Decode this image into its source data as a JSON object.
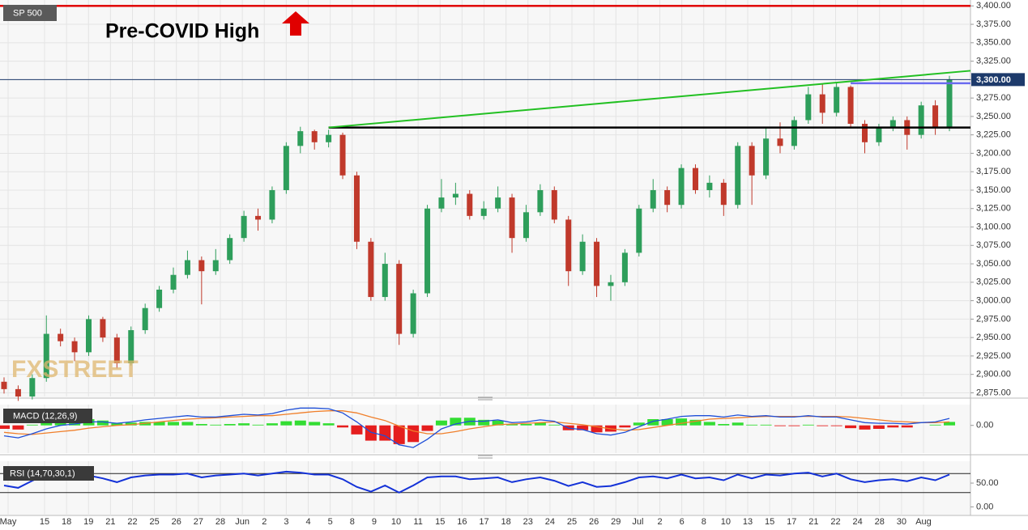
{
  "chart_data": [
    {
      "type": "candlestick",
      "title": "SP 500",
      "annotation": "Pre-COVID High",
      "watermark": "FXSTREET",
      "open": [
        2890,
        2880,
        2870,
        2895,
        2955,
        2945,
        2930,
        2975,
        2950,
        2915,
        2960,
        2990,
        3015,
        3035,
        3055,
        3040,
        3055,
        3085,
        3115,
        3110,
        3150,
        3210,
        3230,
        3215,
        3225,
        3170,
        3080,
        3005,
        3050,
        2955,
        3010,
        3125,
        3140,
        3145,
        3115,
        3125,
        3140,
        3085,
        3120,
        3150,
        3110,
        3040,
        3080,
        3020,
        3025,
        3065,
        3125,
        3150,
        3130,
        3180,
        3150,
        3160,
        3130,
        3210,
        3170,
        3220,
        3210,
        3245,
        3280,
        3255,
        3290,
        3240,
        3215,
        3235,
        3245,
        3225,
        3265,
        3235
      ],
      "high": [
        2896,
        2885,
        2900,
        2980,
        2962,
        2950,
        2980,
        2978,
        2955,
        2965,
        2996,
        3020,
        3045,
        3068,
        3060,
        3070,
        3090,
        3122,
        3125,
        3155,
        3215,
        3236,
        3232,
        3232,
        3228,
        3175,
        3085,
        3065,
        3055,
        3015,
        3130,
        3165,
        3160,
        3150,
        3135,
        3155,
        3145,
        3130,
        3158,
        3155,
        3115,
        3090,
        3085,
        3035,
        3070,
        3130,
        3165,
        3155,
        3185,
        3185,
        3170,
        3165,
        3215,
        3215,
        3235,
        3242,
        3250,
        3290,
        3295,
        3295,
        3292,
        3245,
        3240,
        3250,
        3250,
        3270,
        3272,
        3305
      ],
      "low": [
        2874,
        2864,
        2866,
        2890,
        2938,
        2918,
        2925,
        2944,
        2908,
        2912,
        2955,
        2985,
        3010,
        3030,
        2995,
        3035,
        3050,
        3080,
        3095,
        3105,
        3145,
        3200,
        3205,
        3208,
        3165,
        3070,
        3000,
        3000,
        2940,
        2950,
        3005,
        3120,
        3130,
        3110,
        3110,
        3120,
        3065,
        3080,
        3115,
        3105,
        3020,
        3035,
        3005,
        3000,
        3020,
        3060,
        3120,
        3120,
        3125,
        3145,
        3140,
        3115,
        3125,
        3130,
        3165,
        3200,
        3205,
        3240,
        3240,
        3250,
        3235,
        3200,
        3210,
        3230,
        3205,
        3220,
        3225,
        3230
      ],
      "close": [
        2880,
        2870,
        2895,
        2955,
        2945,
        2930,
        2975,
        2950,
        2915,
        2960,
        2990,
        3015,
        3035,
        3055,
        3040,
        3055,
        3085,
        3115,
        3110,
        3150,
        3210,
        3230,
        3215,
        3225,
        3170,
        3080,
        3005,
        3050,
        2955,
        3010,
        3125,
        3140,
        3145,
        3115,
        3125,
        3140,
        3085,
        3120,
        3150,
        3110,
        3040,
        3080,
        3020,
        3025,
        3065,
        3125,
        3150,
        3130,
        3180,
        3150,
        3160,
        3130,
        3210,
        3170,
        3220,
        3210,
        3245,
        3280,
        3255,
        3290,
        3240,
        3215,
        3235,
        3245,
        3225,
        3265,
        3235,
        3300
      ],
      "up_color": "#2e9e5b",
      "down_color": "#c0392b",
      "ylim": [
        2870,
        3408
      ],
      "yticks": [
        {
          "value": 2875,
          "label": "2,875.00"
        },
        {
          "value": 2900,
          "label": "2,900.00"
        },
        {
          "value": 2925,
          "label": "2,925.00"
        },
        {
          "value": 2950,
          "label": "2,950.00"
        },
        {
          "value": 2975,
          "label": "2,975.00"
        },
        {
          "value": 3000,
          "label": "3,000.00"
        },
        {
          "value": 3025,
          "label": "3,025.00"
        },
        {
          "value": 3050,
          "label": "3,050.00"
        },
        {
          "value": 3075,
          "label": "3,075.00"
        },
        {
          "value": 3100,
          "label": "3,100.00"
        },
        {
          "value": 3125,
          "label": "3,125.00"
        },
        {
          "value": 3150,
          "label": "3,150.00"
        },
        {
          "value": 3175,
          "label": "3,175.00"
        },
        {
          "value": 3200,
          "label": "3,200.00"
        },
        {
          "value": 3225,
          "label": "3,225.00"
        },
        {
          "value": 3250,
          "label": "3,250.00"
        },
        {
          "value": 3275,
          "label": "3,275.00"
        },
        {
          "value": 3300,
          "label": "3,300.00"
        },
        {
          "value": 3325,
          "label": "3,325.00"
        },
        {
          "value": 3350,
          "label": "3,350.00"
        },
        {
          "value": 3375,
          "label": "3,375.00"
        },
        {
          "value": 3400,
          "label": "3,400.00"
        }
      ],
      "grid": true,
      "levels": [
        {
          "value": 3400,
          "color": "#e00000"
        },
        {
          "value": 3300,
          "color": "#1d3a6b"
        },
        {
          "value": 3235,
          "color": "#000000"
        },
        {
          "value": 3295,
          "color": "#6b6bf0"
        }
      ],
      "trendline": {
        "values": [
          3235,
          3312
        ],
        "color": "#22c022"
      },
      "last_price": {
        "value": 3300,
        "label": "3,300.00"
      },
      "date_labels": [
        "May",
        "15",
        "18",
        "19",
        "21",
        "22",
        "25",
        "26",
        "27",
        "28",
        "Jun",
        "2",
        "3",
        "4",
        "5",
        "8",
        "9",
        "10",
        "11",
        "15",
        "16",
        "17",
        "18",
        "23",
        "24",
        "25",
        "26",
        "29",
        "Jul",
        "2",
        "6",
        "8",
        "10",
        "13",
        "15",
        "17",
        "21",
        "22",
        "24",
        "28",
        "30",
        "Aug"
      ]
    },
    {
      "type": "macd",
      "title": "MACD (12,26,9)",
      "macd": {
        "color": "#1f4fd8",
        "values": [
          -15,
          -18,
          -12,
          -5,
          0,
          2,
          5,
          5,
          3,
          5,
          8,
          10,
          12,
          14,
          12,
          12,
          14,
          16,
          15,
          17,
          22,
          25,
          25,
          24,
          18,
          5,
          -10,
          -15,
          -28,
          -32,
          -20,
          -5,
          2,
          6,
          6,
          8,
          4,
          5,
          8,
          6,
          -4,
          -6,
          -12,
          -14,
          -10,
          -2,
          6,
          9,
          13,
          14,
          14,
          12,
          15,
          13,
          14,
          12,
          12,
          14,
          12,
          12,
          8,
          4,
          3,
          3,
          2,
          4,
          5,
          10
        ]
      },
      "signal": {
        "color": "#f07f2a",
        "values": [
          -10,
          -12,
          -13,
          -11,
          -9,
          -7,
          -4,
          -2,
          0,
          1,
          3,
          5,
          7,
          9,
          10,
          11,
          12,
          13,
          14,
          14,
          16,
          18,
          20,
          21,
          21,
          18,
          12,
          7,
          -1,
          -8,
          -12,
          -12,
          -9,
          -5,
          -2,
          1,
          2,
          3,
          4,
          5,
          3,
          1,
          -2,
          -5,
          -7,
          -6,
          -3,
          0,
          3,
          6,
          9,
          10,
          11,
          12,
          13,
          13,
          13,
          13,
          13,
          13,
          12,
          10,
          8,
          6,
          5,
          4,
          4,
          5
        ]
      },
      "histogram": {
        "up_color": "#33dd33",
        "down_color": "#e51e1e",
        "values": [
          -5,
          -6,
          1,
          6,
          9,
          9,
          9,
          7,
          3,
          4,
          5,
          5,
          5,
          5,
          2,
          1,
          2,
          3,
          1,
          3,
          6,
          7,
          5,
          3,
          -3,
          -13,
          -22,
          -22,
          -27,
          -24,
          -8,
          7,
          11,
          11,
          8,
          7,
          2,
          2,
          4,
          1,
          -7,
          -7,
          -10,
          -9,
          -3,
          4,
          9,
          9,
          10,
          8,
          5,
          2,
          4,
          1,
          1,
          -1,
          -1,
          1,
          -1,
          -1,
          -4,
          -6,
          -5,
          -3,
          -3,
          0,
          1,
          5
        ]
      },
      "ylim": [
        -40,
        30
      ],
      "yticks": [
        {
          "value": 0,
          "label": "0.00"
        }
      ]
    },
    {
      "type": "rsi",
      "title": "RSI (14,70,30,1)",
      "color": "#1432d8",
      "values": [
        45,
        40,
        55,
        68,
        62,
        58,
        66,
        60,
        52,
        62,
        66,
        68,
        68,
        70,
        62,
        66,
        68,
        70,
        66,
        70,
        74,
        72,
        68,
        68,
        58,
        42,
        32,
        45,
        30,
        45,
        62,
        64,
        64,
        58,
        60,
        62,
        52,
        58,
        62,
        55,
        44,
        52,
        42,
        44,
        52,
        62,
        64,
        60,
        68,
        60,
        62,
        56,
        68,
        60,
        68,
        66,
        70,
        72,
        64,
        70,
        58,
        52,
        56,
        58,
        54,
        62,
        56,
        68
      ],
      "levels": [
        70,
        30
      ],
      "ylim": [
        -18,
        96
      ],
      "yticks": [
        {
          "value": 0,
          "label": "0.00"
        },
        {
          "value": 50,
          "label": "50.00"
        }
      ]
    }
  ]
}
